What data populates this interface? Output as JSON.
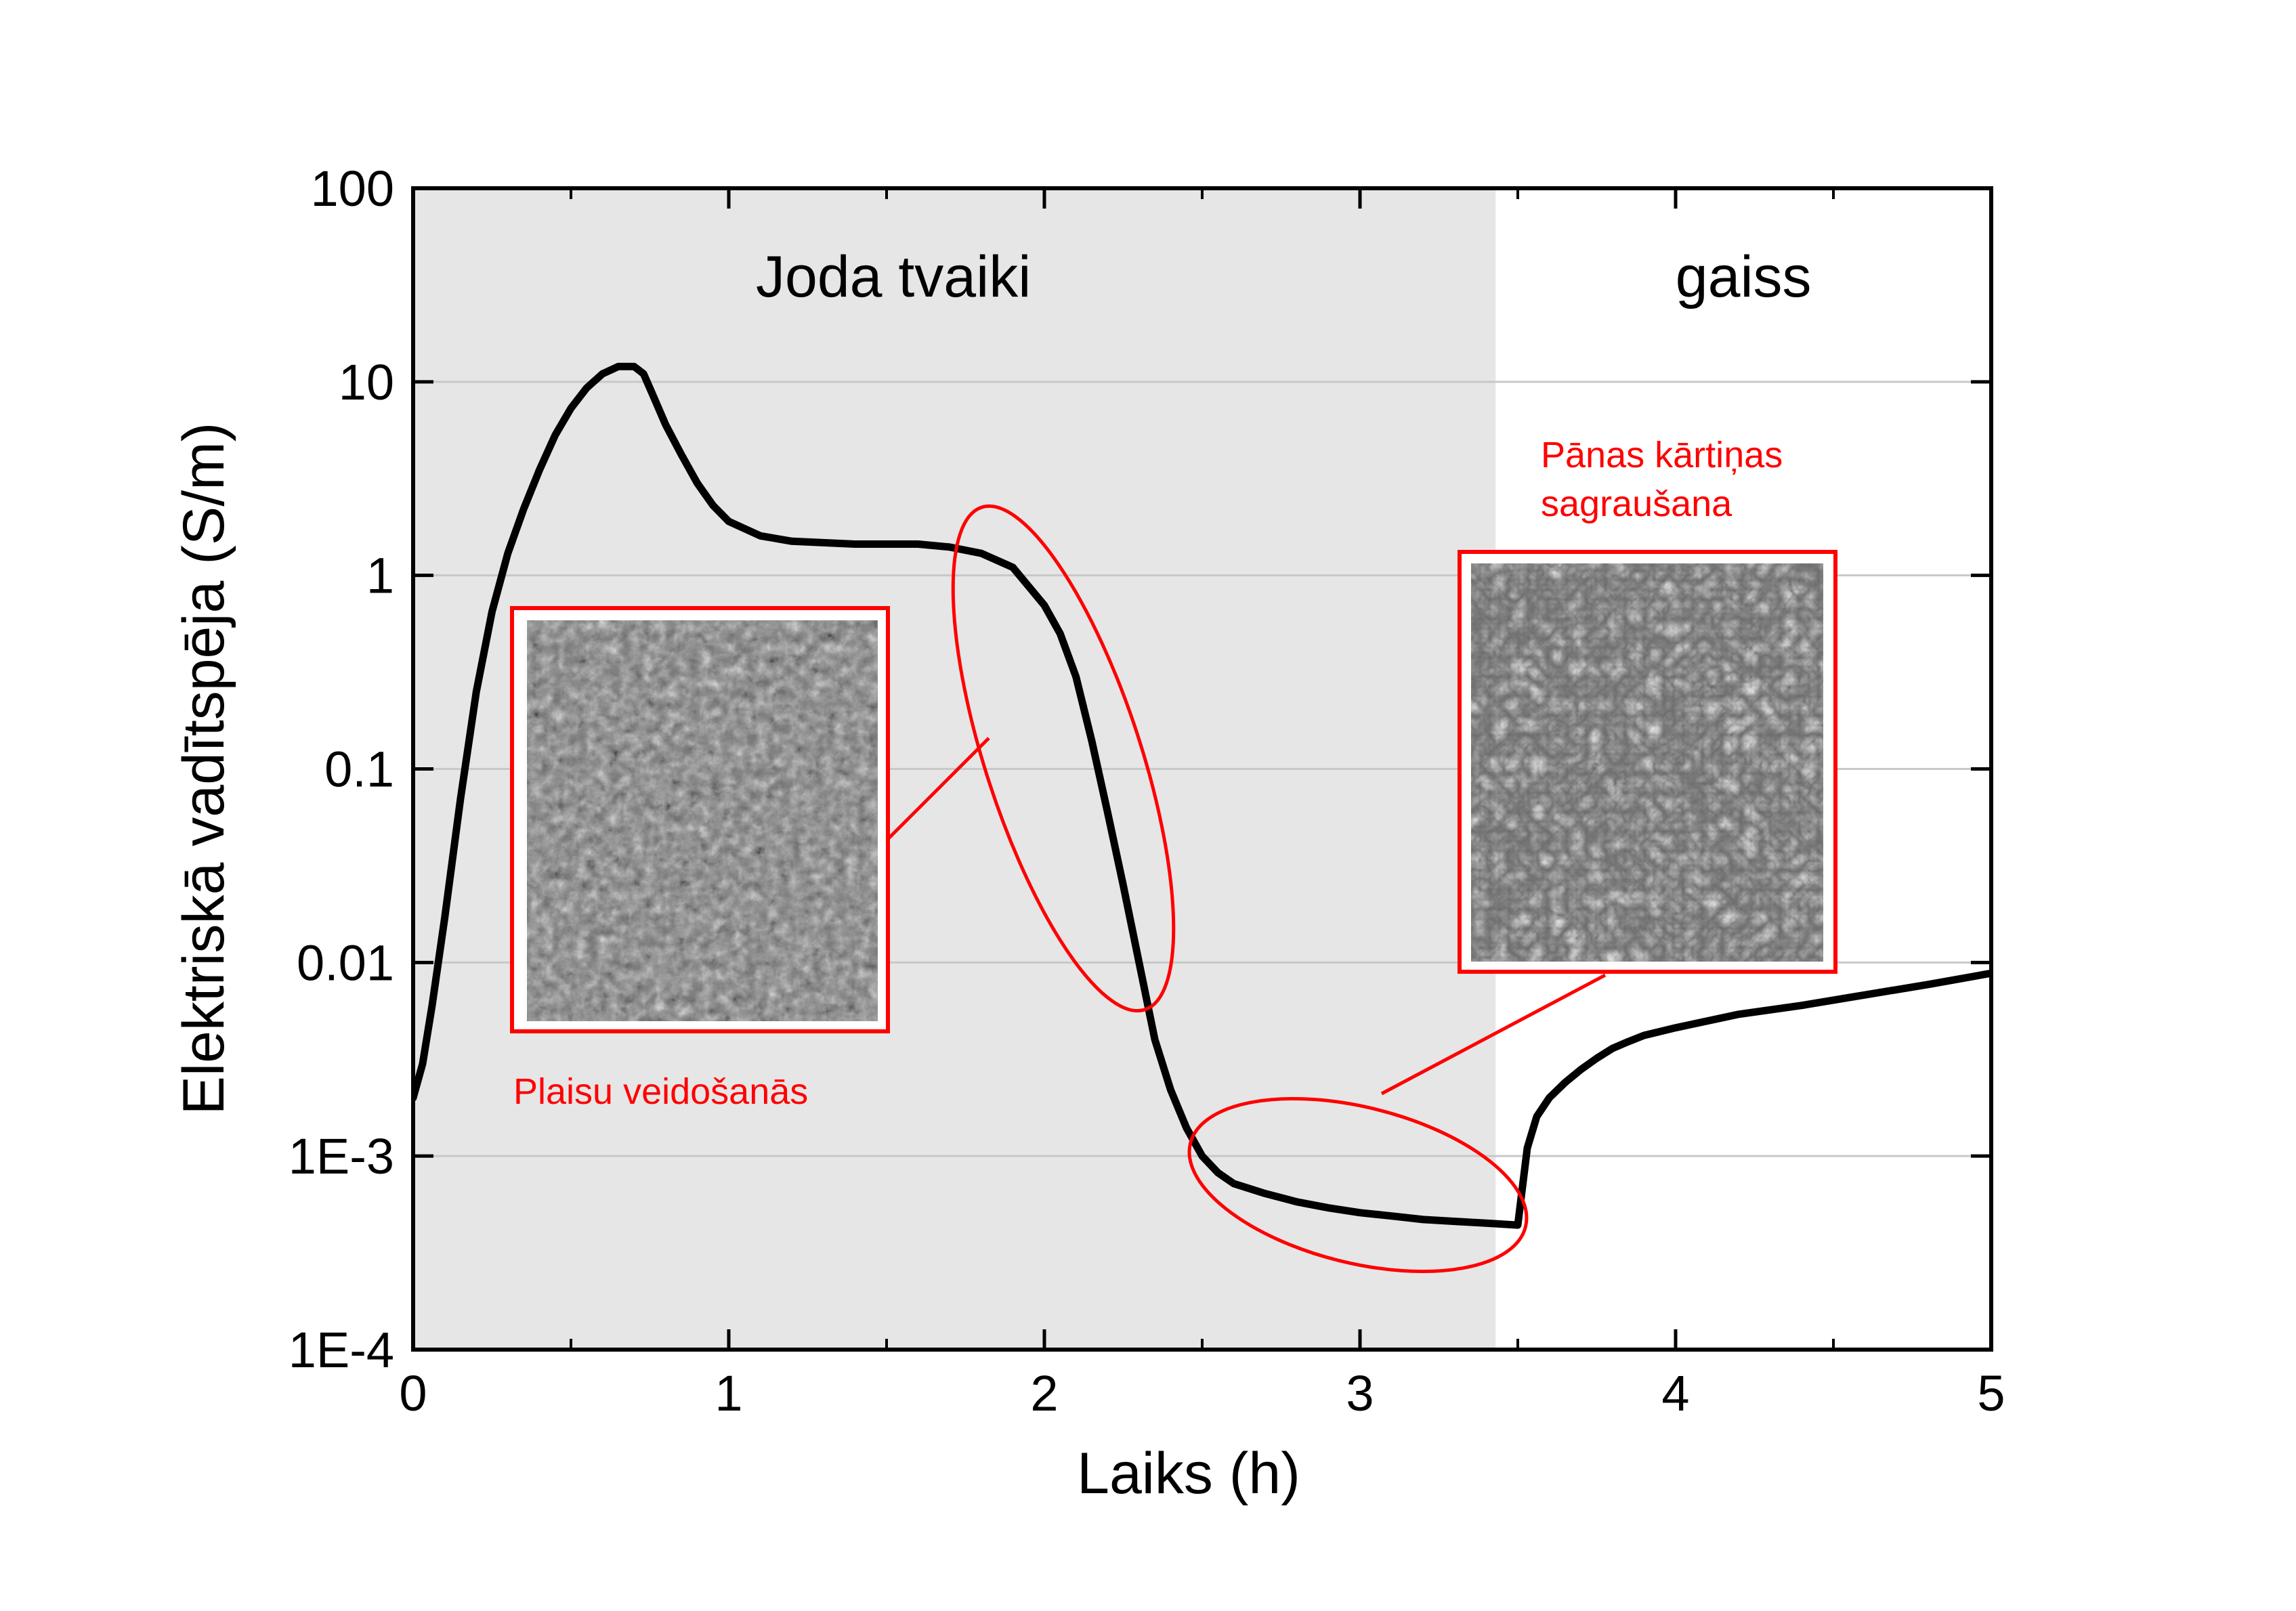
{
  "chart_data": {
    "type": "line",
    "title": "",
    "xlabel": "Laiks (h)",
    "ylabel": "Elektriskā vadītspēja (S/m)",
    "xlim": [
      0,
      5
    ],
    "ylim": [
      0.0001,
      100
    ],
    "y_scale": "log",
    "x_ticks": [
      0,
      1,
      2,
      3,
      4,
      5
    ],
    "x_tick_labels": [
      "0",
      "1",
      "2",
      "3",
      "4",
      "5"
    ],
    "y_ticks": [
      0.0001,
      0.001,
      0.01,
      0.1,
      1,
      10,
      100
    ],
    "y_tick_labels": [
      "1E-4",
      "1E-3",
      "0.01",
      "0.1",
      "1",
      "10",
      "100"
    ],
    "grid": "horizontal",
    "regions": [
      {
        "label": "Joda tvaiki",
        "x_start": 0,
        "x_end": 3.43,
        "color": "#e6e6e6"
      },
      {
        "label": "gaiss",
        "x_start": 3.43,
        "x_end": 5,
        "color": "#ffffff"
      }
    ],
    "series": [
      {
        "color": "#000000",
        "points": [
          [
            0.0,
            0.002
          ],
          [
            0.03,
            0.003
          ],
          [
            0.06,
            0.006
          ],
          [
            0.1,
            0.017
          ],
          [
            0.15,
            0.07
          ],
          [
            0.2,
            0.25
          ],
          [
            0.25,
            0.65
          ],
          [
            0.3,
            1.3
          ],
          [
            0.35,
            2.2
          ],
          [
            0.4,
            3.5
          ],
          [
            0.45,
            5.3
          ],
          [
            0.5,
            7.3
          ],
          [
            0.55,
            9.3
          ],
          [
            0.6,
            11.0
          ],
          [
            0.65,
            12.0
          ],
          [
            0.7,
            12.0
          ],
          [
            0.73,
            11.0
          ],
          [
            0.76,
            8.5
          ],
          [
            0.8,
            6.0
          ],
          [
            0.85,
            4.2
          ],
          [
            0.9,
            3.0
          ],
          [
            0.95,
            2.3
          ],
          [
            1.0,
            1.9
          ],
          [
            1.1,
            1.6
          ],
          [
            1.2,
            1.5
          ],
          [
            1.4,
            1.45
          ],
          [
            1.6,
            1.45
          ],
          [
            1.7,
            1.4
          ],
          [
            1.8,
            1.3
          ],
          [
            1.9,
            1.1
          ],
          [
            2.0,
            0.7
          ],
          [
            2.05,
            0.5
          ],
          [
            2.1,
            0.3
          ],
          [
            2.15,
            0.14
          ],
          [
            2.2,
            0.06
          ],
          [
            2.25,
            0.025
          ],
          [
            2.3,
            0.01
          ],
          [
            2.35,
            0.004
          ],
          [
            2.4,
            0.0022
          ],
          [
            2.45,
            0.0014
          ],
          [
            2.5,
            0.001
          ],
          [
            2.55,
            0.00082
          ],
          [
            2.6,
            0.00072
          ],
          [
            2.7,
            0.00064
          ],
          [
            2.8,
            0.00058
          ],
          [
            2.9,
            0.00054
          ],
          [
            3.0,
            0.00051
          ],
          [
            3.1,
            0.00049
          ],
          [
            3.2,
            0.00047
          ],
          [
            3.3,
            0.00046
          ],
          [
            3.4,
            0.00045
          ],
          [
            3.5,
            0.00044
          ],
          [
            3.51,
            0.0006
          ],
          [
            3.53,
            0.0011
          ],
          [
            3.56,
            0.0016
          ],
          [
            3.6,
            0.002
          ],
          [
            3.65,
            0.0024
          ],
          [
            3.7,
            0.0028
          ],
          [
            3.75,
            0.0032
          ],
          [
            3.8,
            0.0036
          ],
          [
            3.85,
            0.0039
          ],
          [
            3.9,
            0.0042
          ],
          [
            4.0,
            0.0046
          ],
          [
            4.2,
            0.0054
          ],
          [
            4.4,
            0.006
          ],
          [
            4.6,
            0.0068
          ],
          [
            4.8,
            0.0077
          ],
          [
            5.0,
            0.0088
          ]
        ]
      }
    ],
    "annotations": [
      {
        "text": "Plaisu veidošanās",
        "color": "#ff0000",
        "target_x_range": [
          1.6,
          2.4
        ]
      },
      {
        "text": "Pānas kārtiņas sagraušana",
        "color": "#ff0000",
        "target_x_range": [
          2.4,
          3.5
        ]
      }
    ],
    "colors": {
      "annotation": "#ff0000",
      "shaded_region": "#e6e6e6",
      "line": "#000000"
    }
  }
}
